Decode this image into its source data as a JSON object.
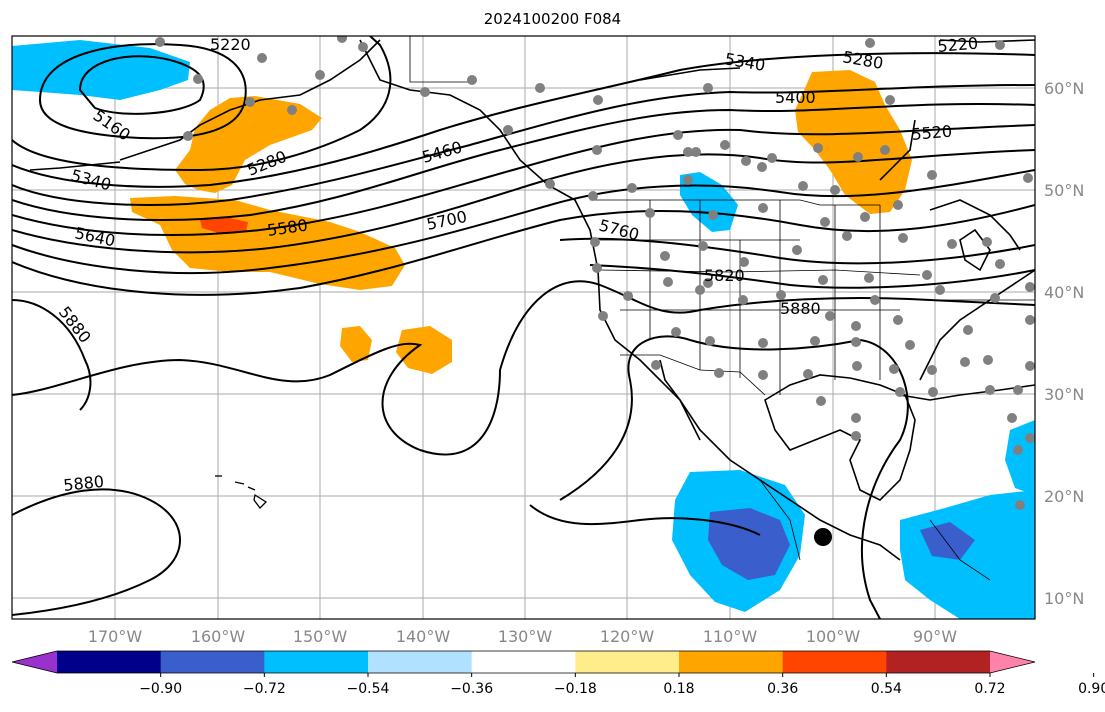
{
  "title": "2024100200 F084",
  "latitude_labels": [
    "60°N",
    "50°N",
    "40°N",
    "30°N",
    "20°N",
    "10°N"
  ],
  "longitude_labels": [
    "170°W",
    "160°W",
    "150°W",
    "140°W",
    "130°W",
    "120°W",
    "110°W",
    "100°W",
    "90°W"
  ],
  "contour_labels": [
    "5220",
    "5160",
    "5280",
    "5340",
    "5640",
    "5580",
    "5700",
    "5460",
    "5340",
    "5400",
    "5280",
    "5220",
    "5520",
    "5760",
    "5820",
    "5880",
    "5880",
    "5880"
  ],
  "colorbar": {
    "tick_labels": [
      "−0.90",
      "−0.72",
      "−0.54",
      "−0.36",
      "−0.18",
      "0.18",
      "0.36",
      "0.54",
      "0.72",
      "0.90"
    ],
    "colors": [
      "#9932cc",
      "#00008b",
      "#3a5fcd",
      "#00bfff",
      "#b0e2ff",
      "#ffffff",
      "#ffec8b",
      "#ffa500",
      "#ff4500",
      "#b22222",
      "#ff82ab"
    ]
  },
  "map_colors": {
    "positive_anomaly": "#ffa500",
    "strong_positive": "#ff4500",
    "negative_anomaly": "#00bfff",
    "strong_negative": "#3a5fcd",
    "contours": "#000000",
    "stations": "#808080",
    "grid": "#aaaaaa"
  }
}
